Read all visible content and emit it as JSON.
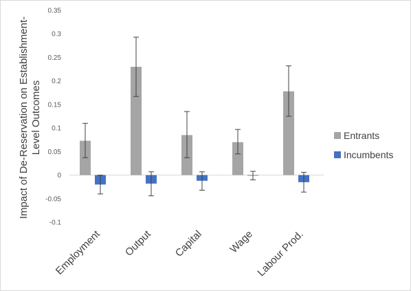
{
  "chart_data": {
    "type": "bar",
    "title": "",
    "xlabel": "",
    "ylabel_lines": [
      "Impact of De-Reservation on Establishment-",
      "Level Outcomes"
    ],
    "ylim": [
      -0.1,
      0.35
    ],
    "yticks": [
      -0.1,
      -0.05,
      0,
      0.05,
      0.1,
      0.15,
      0.2,
      0.25,
      0.3,
      0.35
    ],
    "ytick_labels": [
      "-0.1",
      "-0.05",
      "0",
      "0.05",
      "0.1",
      "0.15",
      "0.2",
      "0.25",
      "0.3",
      "0.35"
    ],
    "categories": [
      "Employment",
      "Output",
      "Capital",
      "Wage",
      "Labour Prod."
    ],
    "series": [
      {
        "name": "Entrants",
        "color": "#a5a5a5",
        "values": [
          0.073,
          0.23,
          0.085,
          0.07,
          0.178
        ],
        "error_low": [
          0.037,
          0.167,
          0.037,
          0.045,
          0.125
        ],
        "error_high": [
          0.11,
          0.293,
          0.135,
          0.097,
          0.232
        ]
      },
      {
        "name": "Incumbents",
        "color": "#4472c4",
        "values": [
          -0.02,
          -0.018,
          -0.012,
          0.0,
          -0.015
        ],
        "error_low": [
          -0.04,
          -0.044,
          -0.032,
          -0.01,
          -0.036
        ],
        "error_high": [
          0.0,
          0.007,
          0.007,
          0.008,
          0.006
        ]
      }
    ],
    "grid": false,
    "legend_position": "right"
  }
}
